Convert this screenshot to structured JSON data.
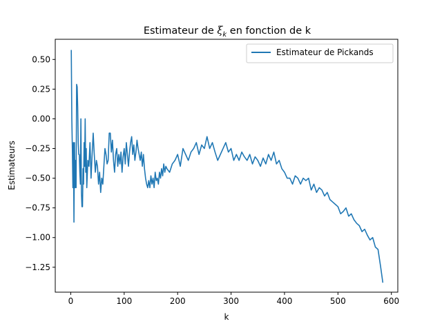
{
  "chart_data": {
    "type": "line",
    "title_main": "Estimateur de ",
    "title_symbol": "ξ",
    "title_subscript": "k",
    "title_tail": " en fonction de k",
    "xlabel": "k",
    "ylabel": "Estimateurs",
    "xlim": [
      -29,
      612
    ],
    "ylim": [
      -1.46,
      0.67
    ],
    "xticks": [
      0,
      100,
      200,
      300,
      400,
      500,
      600
    ],
    "xtick_labels": [
      "0",
      "100",
      "200",
      "300",
      "400",
      "500",
      "600"
    ],
    "yticks": [
      -1.25,
      -1.0,
      -0.75,
      -0.5,
      -0.25,
      0.0,
      0.25,
      0.5
    ],
    "ytick_labels": [
      "−1.25",
      "−1.00",
      "−0.75",
      "−0.50",
      "−0.25",
      "0.00",
      "0.25",
      "0.50"
    ],
    "grid": false,
    "legend_position": "top-right",
    "line_color": "#1f77b4",
    "series": [
      {
        "name": "Estimateur de Pickands",
        "x": [
          1,
          2,
          3,
          4,
          5,
          6,
          7,
          8,
          9,
          10,
          11,
          12,
          13,
          14,
          15,
          16,
          17,
          18,
          19,
          20,
          21,
          22,
          23,
          24,
          25,
          26,
          27,
          28,
          29,
          30,
          32,
          34,
          36,
          38,
          40,
          42,
          44,
          46,
          48,
          50,
          52,
          54,
          56,
          58,
          60,
          62,
          64,
          66,
          68,
          70,
          72,
          74,
          76,
          78,
          80,
          82,
          84,
          86,
          88,
          90,
          92,
          94,
          96,
          98,
          100,
          102,
          104,
          106,
          108,
          110,
          112,
          114,
          116,
          118,
          120,
          122,
          124,
          126,
          128,
          130,
          132,
          134,
          136,
          138,
          140,
          142,
          144,
          146,
          148,
          150,
          152,
          154,
          156,
          158,
          160,
          162,
          164,
          166,
          168,
          170,
          172,
          174,
          176,
          178,
          180,
          185,
          190,
          195,
          200,
          205,
          210,
          215,
          220,
          225,
          230,
          235,
          240,
          245,
          250,
          255,
          260,
          265,
          270,
          275,
          280,
          285,
          290,
          295,
          300,
          305,
          310,
          315,
          320,
          325,
          330,
          335,
          340,
          345,
          350,
          355,
          360,
          365,
          370,
          375,
          380,
          385,
          390,
          395,
          400,
          405,
          410,
          415,
          420,
          425,
          430,
          435,
          440,
          445,
          450,
          455,
          460,
          465,
          470,
          475,
          480,
          485,
          490,
          495,
          500,
          505,
          510,
          515,
          520,
          525,
          530,
          535,
          540,
          545,
          550,
          555,
          560,
          565,
          570,
          575,
          580,
          584
        ],
        "y": [
          0.58,
          0.0,
          -0.25,
          -0.58,
          -0.2,
          -0.87,
          -0.2,
          -0.58,
          -0.35,
          -0.58,
          0.29,
          0.27,
          0.1,
          -0.2,
          -0.3,
          -0.3,
          -0.45,
          -0.55,
          0.0,
          -0.62,
          -0.74,
          -0.74,
          -0.42,
          -0.55,
          -0.2,
          -0.4,
          0.0,
          -0.45,
          -0.25,
          -0.58,
          -0.35,
          -0.4,
          -0.2,
          -0.5,
          -0.3,
          -0.12,
          -0.3,
          -0.45,
          -0.35,
          -0.4,
          -0.55,
          -0.45,
          -0.62,
          -0.5,
          -0.55,
          -0.4,
          -0.25,
          -0.3,
          -0.38,
          -0.35,
          -0.12,
          -0.12,
          -0.28,
          -0.18,
          -0.35,
          -0.45,
          -0.3,
          -0.25,
          -0.4,
          -0.3,
          -0.38,
          -0.28,
          -0.45,
          -0.32,
          -0.25,
          -0.38,
          -0.2,
          -0.3,
          -0.4,
          -0.28,
          -0.2,
          -0.15,
          -0.3,
          -0.22,
          -0.35,
          -0.28,
          -0.18,
          -0.25,
          -0.3,
          -0.35,
          -0.28,
          -0.4,
          -0.3,
          -0.42,
          -0.5,
          -0.55,
          -0.58,
          -0.52,
          -0.58,
          -0.48,
          -0.55,
          -0.5,
          -0.58,
          -0.45,
          -0.52,
          -0.5,
          -0.55,
          -0.45,
          -0.5,
          -0.42,
          -0.48,
          -0.38,
          -0.45,
          -0.4,
          -0.42,
          -0.45,
          -0.38,
          -0.35,
          -0.3,
          -0.4,
          -0.25,
          -0.3,
          -0.35,
          -0.28,
          -0.25,
          -0.2,
          -0.3,
          -0.22,
          -0.25,
          -0.15,
          -0.25,
          -0.2,
          -0.28,
          -0.35,
          -0.3,
          -0.25,
          -0.2,
          -0.28,
          -0.25,
          -0.35,
          -0.3,
          -0.35,
          -0.28,
          -0.32,
          -0.35,
          -0.3,
          -0.38,
          -0.32,
          -0.35,
          -0.4,
          -0.33,
          -0.38,
          -0.3,
          -0.35,
          -0.28,
          -0.38,
          -0.35,
          -0.42,
          -0.45,
          -0.5,
          -0.5,
          -0.55,
          -0.48,
          -0.5,
          -0.55,
          -0.5,
          -0.52,
          -0.5,
          -0.6,
          -0.55,
          -0.62,
          -0.58,
          -0.6,
          -0.65,
          -0.62,
          -0.68,
          -0.7,
          -0.72,
          -0.74,
          -0.8,
          -0.78,
          -0.75,
          -0.82,
          -0.8,
          -0.85,
          -0.88,
          -0.9,
          -0.95,
          -0.93,
          -0.98,
          -1.02,
          -1.0,
          -1.08,
          -1.1,
          -1.25,
          -1.38
        ]
      }
    ]
  }
}
